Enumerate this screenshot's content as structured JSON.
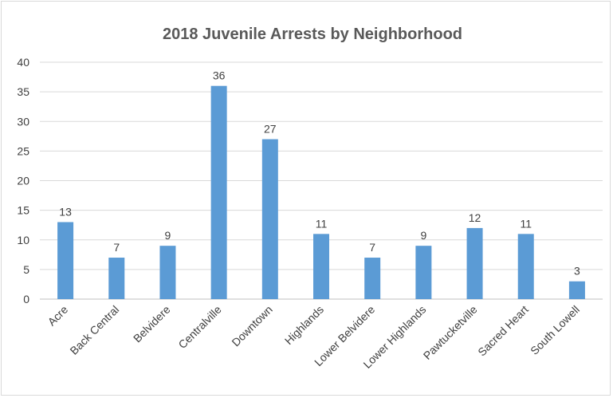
{
  "chart_data": {
    "type": "bar",
    "title": "2018 Juvenile Arrests by Neighborhood",
    "categories": [
      "Acre",
      "Back Central",
      "Belvidere",
      "Centralville",
      "Downtown",
      "Highlands",
      "Lower Belvidere",
      "Lower Highlands",
      "Pawtucketville",
      "Sacred Heart",
      "South Lowell"
    ],
    "values": [
      13,
      7,
      9,
      36,
      27,
      11,
      7,
      9,
      12,
      11,
      3
    ],
    "ylim": [
      0,
      40
    ],
    "yticks": [
      "0",
      "5",
      "10",
      "15",
      "20",
      "25",
      "30",
      "35",
      "40"
    ],
    "grid": true,
    "bar_color": "#5b9bd5",
    "data_labels": true
  }
}
